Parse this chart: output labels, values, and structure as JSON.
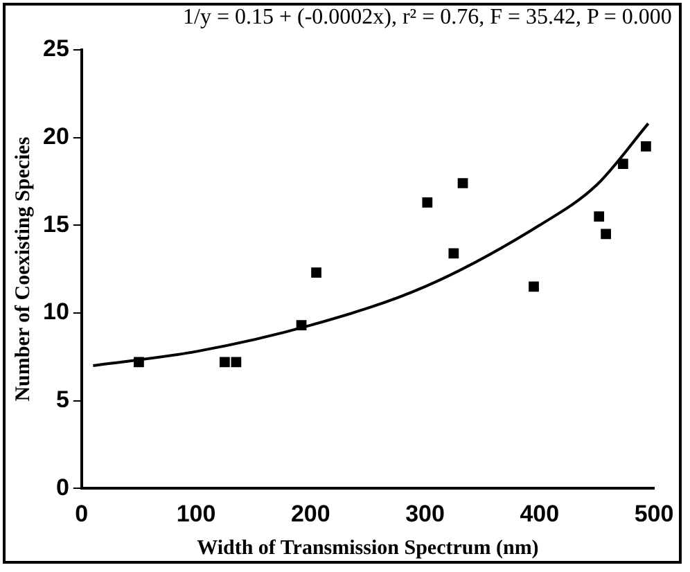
{
  "chart_data": {
    "type": "scatter",
    "xlabel": "Width of Transmission Spectrum (nm)",
    "ylabel": "Number of Coexisting Species",
    "annotations": [
      "1/y = 0.15 + (-0.0002x), r² = 0.76, F = 35.42, P = 0.000"
    ],
    "xlim": [
      0,
      500
    ],
    "ylim": [
      0,
      25
    ],
    "xticks": [
      0,
      100,
      200,
      300,
      400,
      500
    ],
    "yticks": [
      0,
      5,
      10,
      15,
      20,
      25
    ],
    "grid": false,
    "legend": false,
    "series": [
      {
        "color": "#000000",
        "marker": "square",
        "x": [
          50,
          125,
          135,
          192,
          205,
          302,
          325,
          333,
          395,
          452,
          458,
          473,
          493
        ],
        "values": [
          7.2,
          7.2,
          7.2,
          9.3,
          12.3,
          16.3,
          13.4,
          17.4,
          11.5,
          15.5,
          14.5,
          18.5,
          19.5
        ]
      },
      {
        "type": "line",
        "color": "#000000",
        "marker": "none",
        "line_style": "solid",
        "x": [
          10,
          100,
          200,
          300,
          400,
          450,
          495
        ],
        "values": [
          7.0,
          7.8,
          9.3,
          11.5,
          15.0,
          17.3,
          20.8
        ]
      }
    ]
  }
}
